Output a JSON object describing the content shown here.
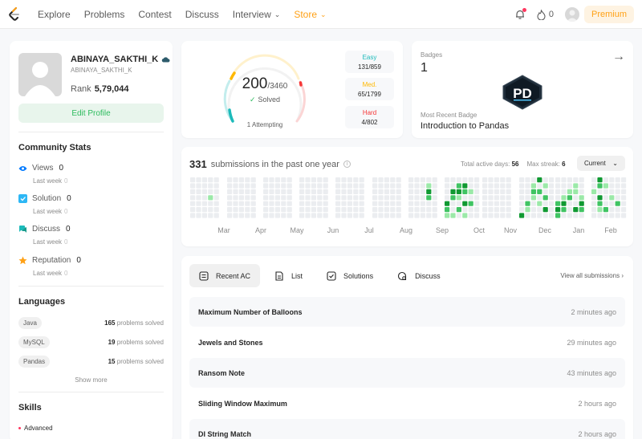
{
  "nav": {
    "items": [
      {
        "label": "Explore"
      },
      {
        "label": "Problems"
      },
      {
        "label": "Contest"
      },
      {
        "label": "Discuss"
      },
      {
        "label": "Interview",
        "dropdown": true
      },
      {
        "label": "Store",
        "dropdown": true
      }
    ],
    "streak": "0",
    "premium": "Premium"
  },
  "profile": {
    "name": "ABINAYA_SAKTHI_K",
    "handle": "ABINAYA_SAKTHI_K",
    "rank_label": "Rank",
    "rank": "5,79,044",
    "edit": "Edit Profile"
  },
  "community": {
    "title": "Community Stats",
    "stats": [
      {
        "label": "Views",
        "value": "0",
        "sub": "Last week",
        "sub_val": "0",
        "icon": "eye-icon"
      },
      {
        "label": "Solution",
        "value": "0",
        "sub": "Last week",
        "sub_val": "0",
        "icon": "solution-icon"
      },
      {
        "label": "Discuss",
        "value": "0",
        "sub": "Last week",
        "sub_val": "0",
        "icon": "discuss-icon"
      },
      {
        "label": "Reputation",
        "value": "0",
        "sub": "Last week",
        "sub_val": "0",
        "icon": "star-icon"
      }
    ]
  },
  "languages": {
    "title": "Languages",
    "items": [
      {
        "name": "Java",
        "count": "165",
        "suffix": "problems solved"
      },
      {
        "name": "MySQL",
        "count": "19",
        "suffix": "problems solved"
      },
      {
        "name": "Pandas",
        "count": "15",
        "suffix": "problems solved"
      }
    ],
    "show_more": "Show more"
  },
  "skills": {
    "title": "Skills",
    "level": "Advanced"
  },
  "solved": {
    "count": "200",
    "total": "/3460",
    "label": "Solved",
    "attempting": "1 Attempting",
    "easy": {
      "label": "Easy",
      "value": "131/859",
      "color": "#1cbaba"
    },
    "medium": {
      "label": "Med.",
      "value": "65/1799",
      "color": "#ffb800"
    },
    "hard": {
      "label": "Hard",
      "value": "4/802",
      "color": "#f63737"
    }
  },
  "badges": {
    "label": "Badges",
    "count": "1",
    "recent_label": "Most Recent Badge",
    "recent_name": "Introduction to Pandas",
    "badge_text": "PD"
  },
  "heatmap": {
    "count": "331",
    "title": "submissions in the past one year",
    "active_label": "Total active days:",
    "active": "56",
    "streak_label": "Max streak:",
    "streak": "6",
    "range": "Current",
    "months": [
      "Mar",
      "Apr",
      "May",
      "Jun",
      "Jul",
      "Aug",
      "Sep",
      "Oct",
      "Nov",
      "Dec",
      "Jan",
      "Feb"
    ]
  },
  "recent": {
    "tabs": [
      {
        "label": "Recent AC",
        "icon": "recent-ac-icon"
      },
      {
        "label": "List",
        "icon": "list-icon"
      },
      {
        "label": "Solutions",
        "icon": "solutions-icon"
      },
      {
        "label": "Discuss",
        "icon": "discuss-icon"
      }
    ],
    "view_all": "View all submissions",
    "rows": [
      {
        "title": "Maximum Number of Balloons",
        "time": "2 minutes ago"
      },
      {
        "title": "Jewels and Stones",
        "time": "29 minutes ago"
      },
      {
        "title": "Ransom Note",
        "time": "43 minutes ago"
      },
      {
        "title": "Sliding Window Maximum",
        "time": "2 hours ago"
      },
      {
        "title": "DI String Match",
        "time": "2 hours ago"
      }
    ]
  }
}
